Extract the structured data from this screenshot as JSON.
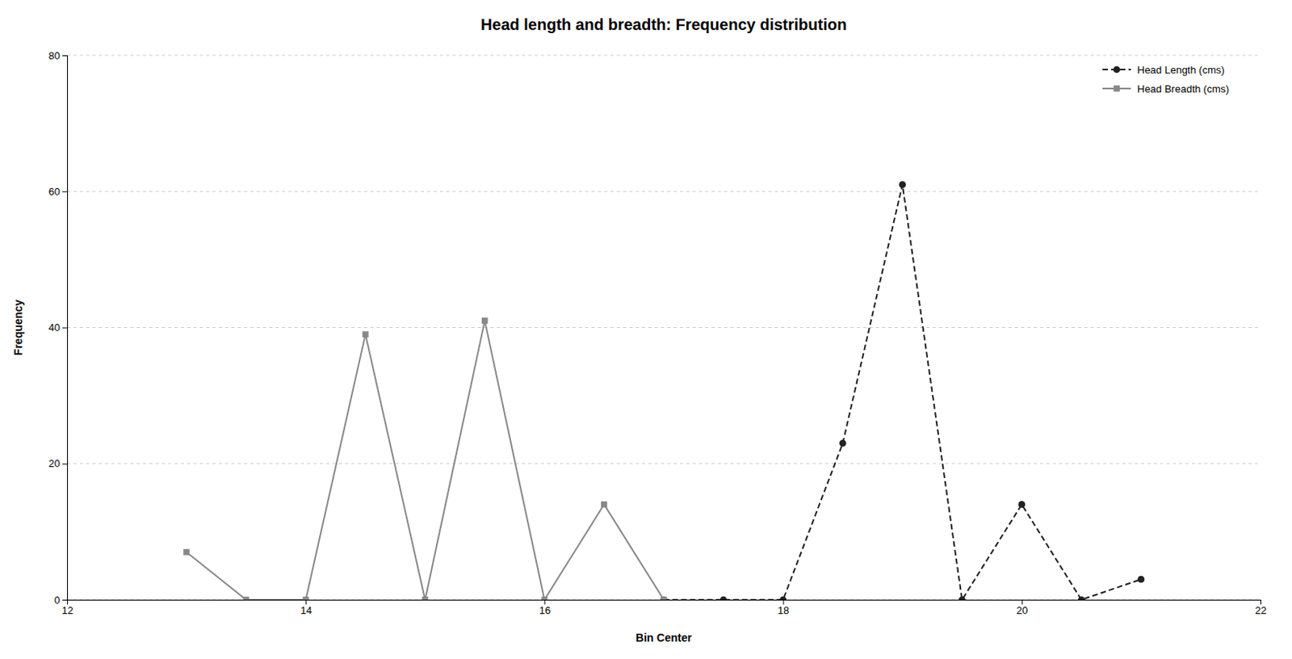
{
  "chart_data": {
    "type": "line",
    "title": "Head length and breadth: Frequency distribution",
    "xlabel": "Bin Center",
    "ylabel": "Frequency",
    "xlim": [
      12,
      22
    ],
    "ylim": [
      0,
      80
    ],
    "xticks": [
      12,
      14,
      16,
      18,
      20,
      22
    ],
    "yticks": [
      0,
      20,
      40,
      60,
      80
    ],
    "grid": true,
    "legend": "upper right",
    "series": [
      {
        "name": "Head Length (cms)",
        "color": "#222222",
        "marker": "circle",
        "line_style": "dashed",
        "x": [
          17,
          17.5,
          18,
          18.5,
          19,
          19.5,
          20,
          20.5,
          21
        ],
        "values": [
          0,
          0,
          0,
          23,
          61,
          0,
          14,
          0,
          3
        ]
      },
      {
        "name": "Head Breadth (cms)",
        "color": "#888888",
        "marker": "square",
        "line_style": "solid",
        "x": [
          13,
          13.5,
          14,
          14.5,
          15,
          15.5,
          16,
          16.5,
          17
        ],
        "values": [
          7,
          0,
          0,
          39,
          0,
          41,
          0,
          14,
          0
        ]
      }
    ]
  }
}
